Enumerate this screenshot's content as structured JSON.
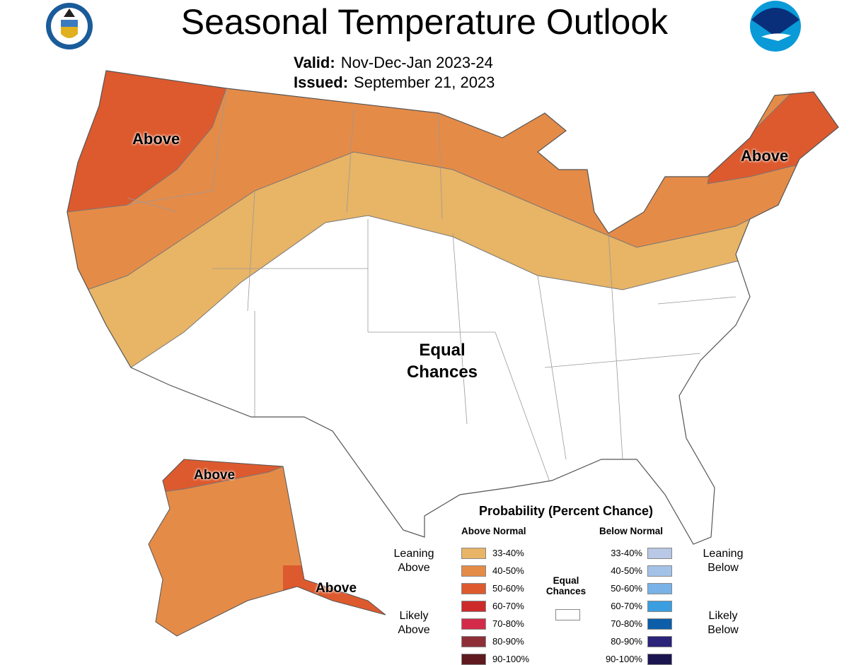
{
  "header": {
    "title": "Seasonal Temperature Outlook",
    "valid_label": "Valid:",
    "valid_value": "Nov-Dec-Jan 2023-24",
    "issued_label": "Issued:",
    "issued_value": "September 21, 2023",
    "logo_left": "Department of Commerce seal",
    "logo_right": "NOAA"
  },
  "map": {
    "labels": {
      "northwest": "Above",
      "northeast": "Above",
      "alaska_north": "Above",
      "alaska_southeast": "Above",
      "center_line1": "Equal",
      "center_line2": "Chances"
    }
  },
  "legend": {
    "title": "Probability (Percent Chance)",
    "above_header": "Above Normal",
    "below_header": "Below Normal",
    "leaning_above": [
      "Leaning",
      "Above"
    ],
    "likely_above": [
      "Likely",
      "Above"
    ],
    "leaning_below": [
      "Leaning",
      "Below"
    ],
    "likely_below": [
      "Likely",
      "Below"
    ],
    "equal_chances": [
      "Equal",
      "Chances"
    ],
    "equal_color": "#ffffff",
    "above": [
      {
        "range": "33-40%",
        "color": "#e8b466"
      },
      {
        "range": "40-50%",
        "color": "#e58b48"
      },
      {
        "range": "50-60%",
        "color": "#dd5a2e"
      },
      {
        "range": "60-70%",
        "color": "#cc2b2a"
      },
      {
        "range": "70-80%",
        "color": "#d42a4a"
      },
      {
        "range": "80-90%",
        "color": "#8e2f38"
      },
      {
        "range": "90-100%",
        "color": "#5e1a1e"
      }
    ],
    "below": [
      {
        "range": "33-40%",
        "color": "#b8c8e6"
      },
      {
        "range": "40-50%",
        "color": "#a3c2e8"
      },
      {
        "range": "50-60%",
        "color": "#79b2e6"
      },
      {
        "range": "60-70%",
        "color": "#3a9ee0"
      },
      {
        "range": "70-80%",
        "color": "#0c5ea8"
      },
      {
        "range": "80-90%",
        "color": "#2b2279"
      },
      {
        "range": "90-100%",
        "color": "#1b1650"
      }
    ]
  }
}
